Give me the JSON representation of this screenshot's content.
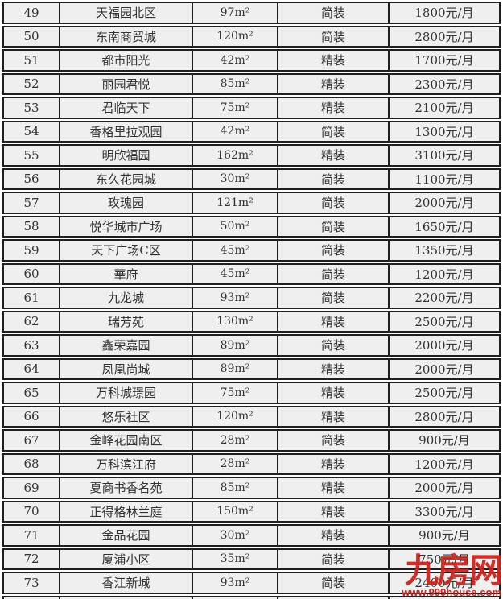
{
  "table": {
    "rows": [
      {
        "no": "49",
        "name": "天福园北区",
        "area": "97m²",
        "decoration": "简装",
        "price": "1800元/月"
      },
      {
        "no": "50",
        "name": "东南商贸城",
        "area": "120m²",
        "decoration": "简装",
        "price": "2800元/月"
      },
      {
        "no": "51",
        "name": "都市阳光",
        "area": "42m²",
        "decoration": "精装",
        "price": "1700元/月"
      },
      {
        "no": "52",
        "name": "丽园君悦",
        "area": "85m²",
        "decoration": "精装",
        "price": "2300元/月"
      },
      {
        "no": "53",
        "name": "君临天下",
        "area": "75m²",
        "decoration": "精装",
        "price": "2100元/月"
      },
      {
        "no": "54",
        "name": "香格里拉观园",
        "area": "42m²",
        "decoration": "简装",
        "price": "1300元/月"
      },
      {
        "no": "55",
        "name": "明欣福园",
        "area": "162m²",
        "decoration": "精装",
        "price": "3100元/月"
      },
      {
        "no": "56",
        "name": "东久花园城",
        "area": "30m²",
        "decoration": "简装",
        "price": "1100元/月"
      },
      {
        "no": "57",
        "name": "玫瑰园",
        "area": "121m²",
        "decoration": "简装",
        "price": "2000元/月"
      },
      {
        "no": "58",
        "name": "悦华城市广场",
        "area": "50m²",
        "decoration": "简装",
        "price": "1650元/月"
      },
      {
        "no": "59",
        "name": "天下广场C区",
        "area": "45m²",
        "decoration": "简装",
        "price": "1350元/月"
      },
      {
        "no": "60",
        "name": "華府",
        "area": "45m²",
        "decoration": "简装",
        "price": "1200元/月"
      },
      {
        "no": "61",
        "name": "九龙城",
        "area": "93m²",
        "decoration": "简装",
        "price": "2200元/月"
      },
      {
        "no": "62",
        "name": "瑞芳苑",
        "area": "130m²",
        "decoration": "精装",
        "price": "2500元/月"
      },
      {
        "no": "63",
        "name": "鑫荣嘉园",
        "area": "89m²",
        "decoration": "简装",
        "price": "2000元/月"
      },
      {
        "no": "64",
        "name": "凤凰尚城",
        "area": "89m²",
        "decoration": "精装",
        "price": "2000元/月"
      },
      {
        "no": "65",
        "name": "万科城璟园",
        "area": "75m²",
        "decoration": "精装",
        "price": "2500元/月"
      },
      {
        "no": "66",
        "name": "悠乐社区",
        "area": "120m²",
        "decoration": "精装",
        "price": "2800元/月"
      },
      {
        "no": "67",
        "name": "金峰花园南区",
        "area": "28m²",
        "decoration": "简装",
        "price": "900元/月"
      },
      {
        "no": "68",
        "name": "万科滨江府",
        "area": "28m²",
        "decoration": "精装",
        "price": "1200元/月"
      },
      {
        "no": "69",
        "name": "夏商书香名苑",
        "area": "85m²",
        "decoration": "精装",
        "price": "2000元/月"
      },
      {
        "no": "70",
        "name": "正得格林兰庭",
        "area": "150m²",
        "decoration": "精装",
        "price": "3300元/月"
      },
      {
        "no": "71",
        "name": "金品花园",
        "area": "30m²",
        "decoration": "精装",
        "price": "900元/月"
      },
      {
        "no": "72",
        "name": "厦浦小区",
        "area": "35m²",
        "decoration": "简装",
        "price": "750元/月"
      },
      {
        "no": "73",
        "name": "香江新城",
        "area": "93m²",
        "decoration": "简装",
        "price": "2400元/月"
      }
    ]
  },
  "watermark": {
    "logo": "九房网",
    "site": "www.999house.com",
    "color": "#cc241e"
  }
}
